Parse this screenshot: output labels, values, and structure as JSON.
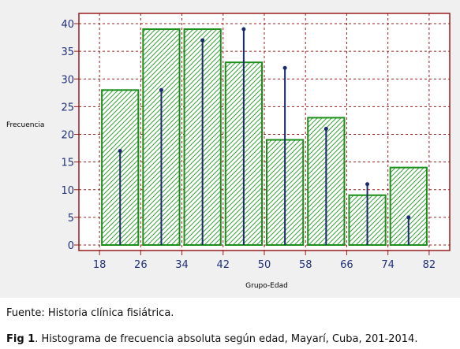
{
  "chart_data": {
    "type": "bar",
    "xlabel": "Grupo-Edad",
    "ylabel": "Frecuencia",
    "ylim": [
      0,
      40
    ],
    "y_ticks": [
      "0",
      "5",
      "10",
      "15",
      "20",
      "25",
      "30",
      "35",
      "40"
    ],
    "x_ticks": [
      "18",
      "26",
      "34",
      "42",
      "50",
      "58",
      "66",
      "74",
      "82"
    ],
    "grid": true,
    "series": [
      {
        "bins": [
          [
            18,
            26
          ],
          [
            26,
            34
          ],
          [
            34,
            42
          ],
          [
            42,
            50
          ],
          [
            50,
            58
          ],
          [
            58,
            66
          ],
          [
            66,
            74
          ],
          [
            74,
            82
          ]
        ],
        "values": [
          28,
          39,
          39,
          33,
          19,
          23,
          9,
          14
        ]
      },
      {
        "x": [
          22,
          30,
          38,
          46,
          54,
          62,
          70,
          78
        ],
        "values": [
          17,
          28,
          37,
          39,
          32,
          21,
          11,
          5
        ]
      }
    ],
    "colors": {
      "bar": "#1a8f1a",
      "hatch": "#3aa03a",
      "stem": "#1a2a6e",
      "frame": "#9b1c1c",
      "tick_text": "#20307a"
    }
  },
  "source": "Fuente: Historia clínica fisiátrica.",
  "caption": {
    "label": "Fig 1",
    "text": ". Histograma de frecuencia absoluta según edad, Mayarí, Cuba, 201-2014."
  }
}
